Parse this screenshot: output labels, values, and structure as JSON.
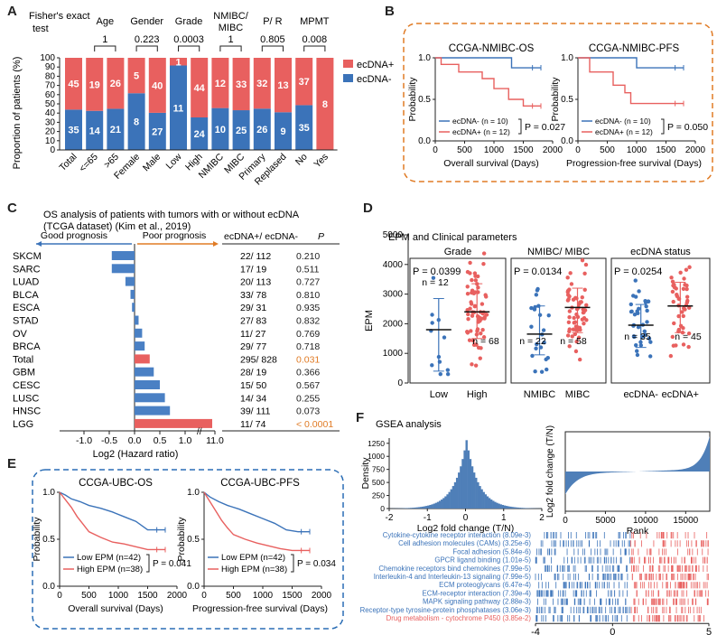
{
  "colors": {
    "red": "#e8605f",
    "blue": "#3b73b9",
    "orange": "#e07b25",
    "darkblue": "#2a6db5",
    "pval": "#e07b25"
  },
  "panels": {
    "A": "A",
    "B": "B",
    "C": "C",
    "D": "D",
    "E": "E",
    "F": "F"
  },
  "panelA": {
    "stats_title": [
      "Fisher's exact",
      "test"
    ],
    "groups": [
      {
        "name": "Age",
        "p": "1"
      },
      {
        "name": "Gender",
        "p": "0.223"
      },
      {
        "name": "Grade",
        "p": "0.0003"
      },
      {
        "name": "NMIBC/\nMIBC",
        "p": "1"
      },
      {
        "name": "P/ R",
        "p": "0.805"
      },
      {
        "name": "MPMT",
        "p": "0.008"
      }
    ],
    "legend": [
      "ecDNA+",
      "ecDNA-"
    ]
  },
  "panelB": {
    "titles": [
      "CCGA-NMIBC-OS",
      "CCGA-NMIBC-PFS"
    ],
    "ylabel": "Probability",
    "xlabels": [
      "Overall survival (Days)",
      "Progression-free survival (Days)"
    ],
    "legend": [
      "ecDNA- (n = 10)",
      "ecDNA+ (n = 12)"
    ],
    "pvals": [
      "P = 0.027",
      "P = 0.050"
    ]
  },
  "panelC": {
    "title": [
      "OS analysis of patients with tumors with or without ecDNA",
      "(TCGA dataset) (Kim et al., 2019)"
    ],
    "good": "Good prognosis",
    "poor": "Poor prognosis",
    "col1": "ecDNA+/ ecDNA-",
    "col2": "P",
    "xlabel": "Log2 (Hazard ratio)",
    "rows": [
      {
        "name": "SKCM",
        "counts": "22/ 112",
        "p": "0.210",
        "hr": -0.45,
        "highlight": false
      },
      {
        "name": "SARC",
        "counts": "17/ 19",
        "p": "0.511",
        "hr": -0.45,
        "highlight": false
      },
      {
        "name": "LUAD",
        "counts": "20/ 113",
        "p": "0.727",
        "hr": -0.18,
        "highlight": false
      },
      {
        "name": "BLCA",
        "counts": "33/ 78",
        "p": "0.810",
        "hr": -0.08,
        "highlight": false
      },
      {
        "name": "ESCA",
        "counts": "29/ 31",
        "p": "0.935",
        "hr": -0.05,
        "highlight": false
      },
      {
        "name": "STAD",
        "counts": "27/ 83",
        "p": "0.832",
        "hr": 0.08,
        "highlight": false
      },
      {
        "name": "OV",
        "counts": "11/ 27",
        "p": "0.769",
        "hr": 0.15,
        "highlight": false
      },
      {
        "name": "BRCA",
        "counts": "29/ 77",
        "p": "0.718",
        "hr": 0.2,
        "highlight": false
      },
      {
        "name": "Total",
        "counts": "295/ 828",
        "p": "0.031",
        "hr": 0.3,
        "highlight": true
      },
      {
        "name": "GBM",
        "counts": "28/ 19",
        "p": "0.366",
        "hr": 0.38,
        "highlight": false
      },
      {
        "name": "CESC",
        "counts": "15/ 50",
        "p": "0.567",
        "hr": 0.5,
        "highlight": false
      },
      {
        "name": "LUSC",
        "counts": "14/ 34",
        "p": "0.255",
        "hr": 0.6,
        "highlight": false
      },
      {
        "name": "HNSC",
        "counts": "39/ 111",
        "p": "0.073",
        "hr": 0.7,
        "highlight": false
      },
      {
        "name": "LGG",
        "counts": "11/ 74",
        "p": "< 0.0001",
        "hr": 11.0,
        "highlight": true
      }
    ]
  },
  "panelD": {
    "title": "EPM and Clinical parameters",
    "ylabel": "EPM",
    "groups": [
      {
        "title": "Grade",
        "p": "P = 0.0399",
        "cats": [
          "Low",
          "High"
        ],
        "n": [
          "n = 12",
          "n = 68"
        ]
      },
      {
        "title": "NMIBC/ MIBC",
        "p": "P = 0.0134",
        "cats": [
          "NMIBC",
          "MIBC"
        ],
        "n": [
          "n = 22",
          "n = 58"
        ]
      },
      {
        "title": "ecDNA status",
        "p": "P = 0.0254",
        "cats": [
          "ecDNA-",
          "ecDNA+"
        ],
        "n": [
          "n = 35",
          "n = 45"
        ]
      }
    ]
  },
  "panelE": {
    "titles": [
      "CCGA-UBC-OS",
      "CCGA-UBC-PFS"
    ],
    "ylabel": "Probability",
    "xlabels": [
      "Overall survival (Days)",
      "Progression-free survival (Days)"
    ],
    "legend": [
      "Low EPM (n=42)",
      "High EPM (n=38)"
    ],
    "pvals": [
      "P = 0.041",
      "P = 0.034"
    ]
  },
  "panelF": {
    "title": "GSEA analysis",
    "hist_ylabel": "Density",
    "hist_xlabel": "Log2 fold change (T/N)",
    "rank_ylabel": "Log2 fold change (T/N)",
    "rank_xlabel": "Rank",
    "pathways": [
      {
        "name": "Cytokine-cytokine receptor interaction (8.09e-3)",
        "color": "#3b73b9"
      },
      {
        "name": "Cell adhesion molecules (CAMs) (3.25e-6)",
        "color": "#3b73b9"
      },
      {
        "name": "Focal adhesion (5.84e-6)",
        "color": "#3b73b9"
      },
      {
        "name": "GPCR ligand binding (1.01e-5)",
        "color": "#3b73b9"
      },
      {
        "name": "Chemokine receptors bind chemokines (7.99e-5)",
        "color": "#3b73b9"
      },
      {
        "name": "Interleukin-4 and Interleukin-13 signaling (7.99e-5)",
        "color": "#3b73b9"
      },
      {
        "name": "ECM proteoglycans (6.47e-4)",
        "color": "#3b73b9"
      },
      {
        "name": "ECM-receptor interaction (7.39e-4)",
        "color": "#3b73b9"
      },
      {
        "name": "MAPK signaling pathway (2.88e-3)",
        "color": "#3b73b9"
      },
      {
        "name": "Receptor-type tyrosine-protein phosphatases (3.06e-3)",
        "color": "#3b73b9"
      },
      {
        "name": "Drug metabolism - cytochrome P450 (3.85e-2)",
        "color": "#e8605f"
      }
    ]
  },
  "chart_data": [
    {
      "type": "bar",
      "id": "A",
      "categories": [
        "Total",
        "<=65",
        ">65",
        "Female",
        "Male",
        "Low",
        "High",
        "NMIBC",
        "MIBC",
        "Primary",
        "Replased",
        "No",
        "Yes"
      ],
      "series": [
        {
          "name": "ecDNA-",
          "values": [
            35,
            14,
            21,
            8,
            27,
            11,
            24,
            10,
            25,
            26,
            9,
            35,
            0
          ]
        },
        {
          "name": "ecDNA+",
          "values": [
            45,
            19,
            26,
            5,
            40,
            1,
            44,
            12,
            33,
            32,
            13,
            37,
            8
          ]
        }
      ],
      "ylabel": "Proportion of patients (%)",
      "yticks": [
        0,
        10,
        20,
        30,
        40,
        50,
        60,
        70,
        80,
        90,
        100
      ],
      "ylim": [
        0,
        100
      ]
    },
    {
      "type": "line",
      "id": "B-OS",
      "xlim": [
        0,
        2000
      ],
      "ylim": [
        0,
        1
      ],
      "xticks": [
        0,
        500,
        1000,
        1500,
        2000
      ],
      "yticks": [
        0.0,
        0.5,
        1.0
      ],
      "series": [
        {
          "name": "ecDNA-",
          "x": [
            0,
            50,
            50,
            1300,
            1300,
            1800
          ],
          "y": [
            1,
            1,
            1,
            1,
            0.88,
            0.88
          ]
        },
        {
          "name": "ecDNA+",
          "x": [
            0,
            100,
            100,
            400,
            400,
            800,
            800,
            1000,
            1000,
            1250,
            1250,
            1500,
            1500,
            1800
          ],
          "y": [
            1,
            1,
            0.92,
            0.92,
            0.83,
            0.83,
            0.75,
            0.75,
            0.63,
            0.63,
            0.5,
            0.5,
            0.42,
            0.42
          ]
        }
      ]
    },
    {
      "type": "line",
      "id": "B-PFS",
      "xlim": [
        0,
        2000
      ],
      "ylim": [
        0,
        1
      ],
      "xticks": [
        0,
        500,
        1000,
        1500,
        2000
      ],
      "yticks": [
        0.0,
        0.5,
        1.0
      ],
      "series": [
        {
          "name": "ecDNA-",
          "x": [
            0,
            1000,
            1000,
            1800
          ],
          "y": [
            1,
            1,
            0.88,
            0.88
          ]
        },
        {
          "name": "ecDNA+",
          "x": [
            0,
            200,
            200,
            600,
            600,
            800,
            800,
            900,
            900,
            1800
          ],
          "y": [
            1,
            1,
            0.83,
            0.83,
            0.67,
            0.67,
            0.58,
            0.58,
            0.45,
            0.45
          ]
        }
      ]
    },
    {
      "type": "bar",
      "id": "C",
      "orientation": "horizontal",
      "xticks": [
        -1.0,
        -0.5,
        0.0,
        0.5,
        1.0,
        11.0
      ],
      "xlabel": "Log2 (Hazard ratio)"
    },
    {
      "type": "scatter",
      "id": "D",
      "ylim": [
        0,
        5000
      ],
      "yticks": [
        0,
        1000,
        2000,
        3000,
        4000,
        5000
      ],
      "groups": [
        {
          "name": "Low",
          "median": 1800,
          "q1": 400,
          "q3": 2850
        },
        {
          "name": "High",
          "median": 2400,
          "q1": 1500,
          "q3": 3350
        },
        {
          "name": "NMIBC",
          "median": 1650,
          "q1": 950,
          "q3": 2600
        },
        {
          "name": "MIBC",
          "median": 2550,
          "q1": 1700,
          "q3": 3200
        },
        {
          "name": "ecDNA-",
          "median": 1950,
          "q1": 1200,
          "q3": 2650
        },
        {
          "name": "ecDNA+",
          "median": 2600,
          "q1": 1700,
          "q3": 3400
        }
      ]
    },
    {
      "type": "line",
      "id": "E-OS",
      "xlim": [
        0,
        2000
      ],
      "ylim": [
        0,
        1
      ],
      "xticks": [
        0,
        500,
        1000,
        1500,
        2000
      ],
      "yticks": [
        0.0,
        0.5,
        1.0
      ],
      "series": [
        {
          "name": "Low EPM",
          "x": [
            0,
            100,
            200,
            350,
            500,
            700,
            900,
            1100,
            1300,
            1500,
            1800
          ],
          "y": [
            1,
            0.97,
            0.93,
            0.9,
            0.86,
            0.83,
            0.79,
            0.74,
            0.69,
            0.6,
            0.6
          ]
        },
        {
          "name": "High EPM",
          "x": [
            0,
            100,
            200,
            300,
            400,
            500,
            700,
            900,
            1100,
            1300,
            1500,
            1800
          ],
          "y": [
            1,
            0.92,
            0.84,
            0.74,
            0.66,
            0.58,
            0.52,
            0.47,
            0.45,
            0.42,
            0.39,
            0.39
          ]
        }
      ]
    },
    {
      "type": "line",
      "id": "E-PFS",
      "xlim": [
        0,
        2000
      ],
      "ylim": [
        0,
        1
      ],
      "xticks": [
        0,
        500,
        1000,
        1500,
        2000
      ],
      "yticks": [
        0.0,
        0.5,
        1.0
      ],
      "series": [
        {
          "name": "Low EPM",
          "x": [
            0,
            100,
            250,
            400,
            600,
            800,
            1000,
            1200,
            1400,
            1600,
            1800
          ],
          "y": [
            1,
            0.95,
            0.9,
            0.86,
            0.82,
            0.77,
            0.72,
            0.67,
            0.6,
            0.58,
            0.58
          ]
        },
        {
          "name": "High EPM",
          "x": [
            0,
            100,
            200,
            300,
            400,
            500,
            700,
            900,
            1100,
            1300,
            1500,
            1800
          ],
          "y": [
            1,
            0.9,
            0.8,
            0.7,
            0.62,
            0.55,
            0.5,
            0.46,
            0.43,
            0.4,
            0.38,
            0.38
          ]
        }
      ]
    },
    {
      "type": "bar",
      "id": "F-hist",
      "xlim": [
        -2,
        2
      ],
      "xticks": [
        -2,
        -1,
        0,
        1,
        2
      ],
      "yticks": [
        0,
        250,
        500,
        750,
        1000,
        1250
      ],
      "ylabel": "Density",
      "xlabel": "Log2 fold change (T/N)"
    },
    {
      "type": "line",
      "id": "F-rank",
      "xticks": [
        0,
        5000,
        10000,
        15000
      ],
      "yticks": [
        -2,
        0,
        2
      ],
      "ylabel": "Log2 fold change (T/N)",
      "xlabel": "Rank"
    },
    {
      "type": "heatmap",
      "id": "F-barcode",
      "xticks": [
        -4,
        0,
        5
      ]
    }
  ]
}
